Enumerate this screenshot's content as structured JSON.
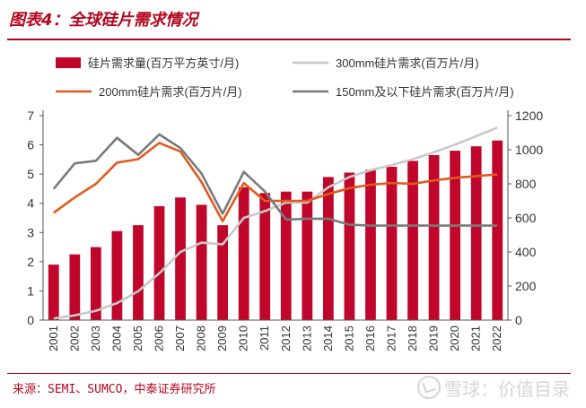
{
  "title": "图表4：全球硅片需求情况",
  "source": "来源：SEMI、SUMCO，中泰证券研究所",
  "watermark": "雪球：价值目录",
  "colors": {
    "accent": "#b4061e",
    "bar": "#c0062a",
    "line_200mm": "#e05a1e",
    "line_300mm": "#c8c8c8",
    "line_150mm": "#7a7a7a",
    "axis_text": "#333333"
  },
  "chart_data": {
    "type": "bar",
    "categories": [
      "2001",
      "2002",
      "2003",
      "2004",
      "2005",
      "2006",
      "2007",
      "2008",
      "2009",
      "2010",
      "2011",
      "2012",
      "2013",
      "2014",
      "2015",
      "2016",
      "2017",
      "2018",
      "2019",
      "2020",
      "2021",
      "2022"
    ],
    "left_axis": {
      "ylim": [
        0,
        7
      ],
      "ticks": [
        "0",
        "1",
        "2",
        "3",
        "4",
        "5",
        "6",
        "7"
      ]
    },
    "right_axis": {
      "ylim": [
        0,
        1200
      ],
      "ticks": [
        "0",
        "200",
        "400",
        "600",
        "800",
        "1000",
        "1200"
      ]
    },
    "grid": false,
    "legend_position": "top",
    "series": [
      {
        "name": "硅片需求量(百万平方英寸/月)",
        "type": "bar",
        "axis": "left",
        "color": "#c0062a",
        "values": [
          1.9,
          2.25,
          2.5,
          3.05,
          3.25,
          3.9,
          4.2,
          3.95,
          3.25,
          4.55,
          4.35,
          4.4,
          4.4,
          4.9,
          5.05,
          5.15,
          5.25,
          5.45,
          5.65,
          5.8,
          5.95,
          6.15
        ]
      },
      {
        "name": "300mm硅片需求(百万片/月)",
        "type": "line",
        "axis": "right",
        "color": "#c8c8c8",
        "values": [
          10,
          28,
          55,
          100,
          170,
          275,
          400,
          455,
          445,
          600,
          640,
          690,
          690,
          780,
          840,
          880,
          910,
          945,
          985,
          1030,
          1080,
          1130
        ]
      },
      {
        "name": "200mm硅片需求(百万片/月)",
        "type": "line",
        "axis": "right",
        "color": "#e05a1e",
        "values": [
          630,
          720,
          800,
          925,
          945,
          1040,
          990,
          810,
          580,
          805,
          700,
          700,
          700,
          740,
          775,
          795,
          805,
          800,
          820,
          835,
          845,
          855
        ]
      },
      {
        "name": "150mm及以下硅片需求(百万片/月)",
        "type": "line",
        "axis": "right",
        "color": "#7a7a7a",
        "values": [
          770,
          920,
          935,
          1070,
          970,
          1090,
          1010,
          860,
          625,
          870,
          755,
          590,
          595,
          595,
          560,
          555,
          555,
          555,
          555,
          555,
          555,
          555
        ]
      }
    ]
  }
}
